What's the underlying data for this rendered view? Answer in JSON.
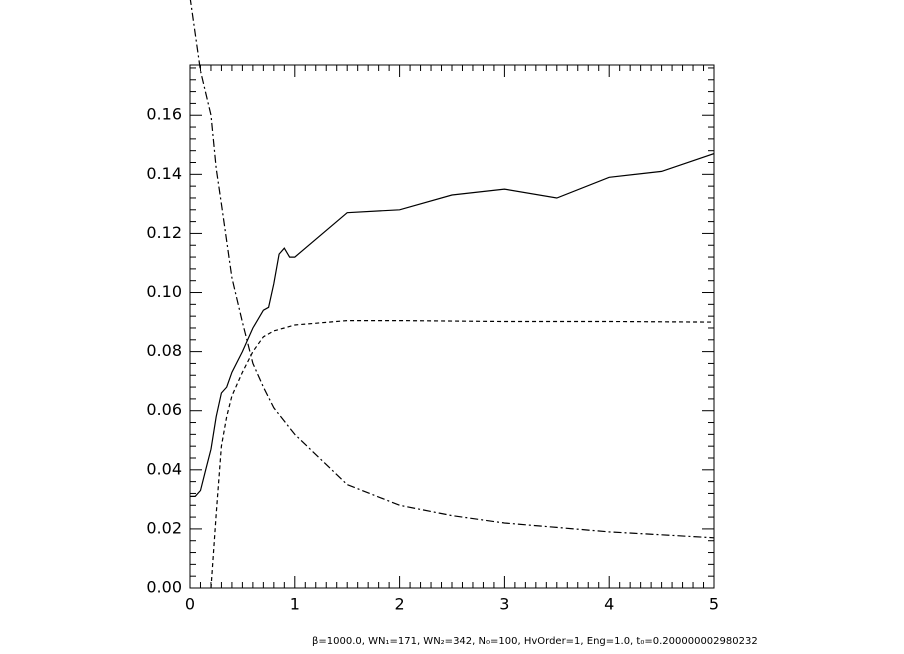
{
  "chart_data": {
    "type": "line",
    "note": "β=1000.0, WN₁=171, WN₂=342, N₀=100, HvOrder=1, Eng=1.0, t₀=0.200000002980232",
    "xlim": [
      0,
      5
    ],
    "xticks": [
      0,
      1,
      2,
      3,
      4,
      5
    ],
    "ylim": [
      0,
      0.177
    ],
    "yticks": [
      {
        "value": 0,
        "label": "0.00"
      },
      {
        "value": 0.02,
        "label": "0.02"
      },
      {
        "value": 0.04,
        "label": "0.04"
      },
      {
        "value": 0.06,
        "label": "0.06"
      },
      {
        "value": 0.08,
        "label": "0.08"
      },
      {
        "value": 0.1,
        "label": "0.10"
      },
      {
        "value": 0.12,
        "label": "0.12"
      },
      {
        "value": 0.14,
        "label": "0.14"
      },
      {
        "value": 0.16,
        "label": "0.16"
      }
    ],
    "series": [
      {
        "color": "#000000",
        "dash": "solid",
        "x": [
          0,
          0.05,
          0.1,
          0.15,
          0.2,
          0.25,
          0.3,
          0.35,
          0.4,
          0.5,
          0.6,
          0.7,
          0.75,
          0.8,
          0.85,
          0.9,
          0.95,
          1.0,
          1.5,
          2.0,
          2.5,
          3.0,
          3.5,
          4.0,
          4.5,
          5.0
        ],
        "values": [
          0.031,
          0.031,
          0.033,
          0.04,
          0.047,
          0.058,
          0.066,
          0.068,
          0.073,
          0.08,
          0.088,
          0.094,
          0.095,
          0.103,
          0.113,
          0.115,
          0.112,
          0.112,
          0.127,
          0.128,
          0.133,
          0.135,
          0.132,
          0.139,
          0.141,
          0.147
        ]
      },
      {
        "color": "#000000",
        "dash": "dashed",
        "x": [
          0.2,
          0.25,
          0.3,
          0.35,
          0.4,
          0.5,
          0.6,
          0.7,
          0.8,
          0.9,
          1.0,
          1.5,
          2.0,
          3.0,
          4.0,
          5.0
        ],
        "values": [
          0,
          0.025,
          0.048,
          0.058,
          0.065,
          0.073,
          0.08,
          0.085,
          0.087,
          0.088,
          0.089,
          0.0905,
          0.0905,
          0.0902,
          0.0902,
          0.09
        ]
      },
      {
        "color": "#000000",
        "dash": "dashdot",
        "x": [
          0,
          0.1,
          0.2,
          0.25,
          0.3,
          0.4,
          0.5,
          0.6,
          0.7,
          0.8,
          1.0,
          1.5,
          2.0,
          2.5,
          3.0,
          3.5,
          4.0,
          4.5,
          5.0
        ],
        "values": [
          0.2,
          0.175,
          0.16,
          0.142,
          0.13,
          0.105,
          0.09,
          0.076,
          0.068,
          0.061,
          0.052,
          0.035,
          0.028,
          0.0245,
          0.022,
          0.0205,
          0.019,
          0.018,
          0.017
        ]
      }
    ]
  }
}
